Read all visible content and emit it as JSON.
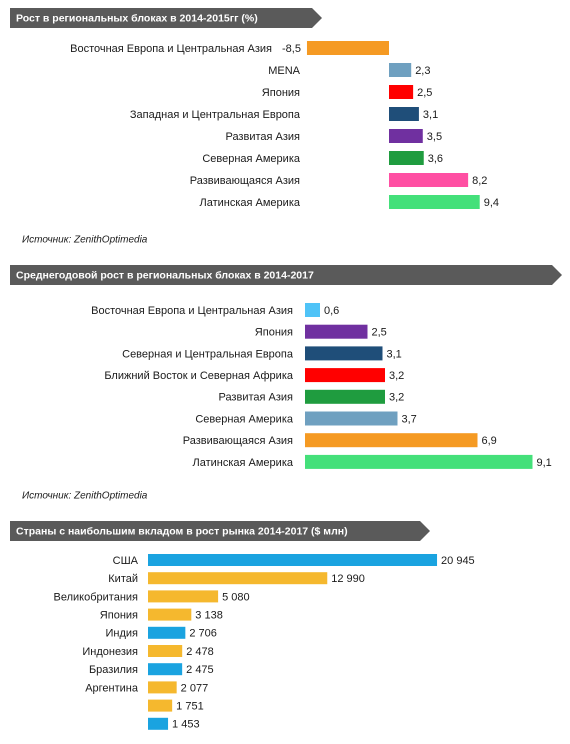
{
  "chart_data": [
    {
      "type": "bar",
      "orientation": "horizontal",
      "title": "Рост в региональных блоках в 2014-2015гг (%)",
      "categories": [
        "Восточная Европа и Центральная Азия",
        "MENA",
        "Япония",
        "Западная и Центральная Европа",
        "Развитая Азия",
        "Северная Америка",
        "Развивающаяся Азия",
        "Латинская Америка"
      ],
      "values": [
        -8.5,
        2.3,
        2.5,
        3.1,
        3.5,
        3.6,
        8.2,
        9.4
      ],
      "value_labels": [
        "-8,5",
        "2,3",
        "2,5",
        "3,1",
        "3,5",
        "3,6",
        "8,2",
        "9,4"
      ],
      "colors": [
        "#f59a23",
        "#6fa0c0",
        "#ff0000",
        "#1f4e79",
        "#7030a0",
        "#1f9c3f",
        "#ff4fa3",
        "#44e07a"
      ],
      "source": "Источник: ZenithOptimedia"
    },
    {
      "type": "bar",
      "orientation": "horizontal",
      "title": "Среднегодовой рост в региональных блоках в 2014-2017",
      "categories": [
        "Восточная Европа и Центральная Азия",
        "Япония",
        "Северная и Центральная Европа",
        "Ближний Восток и Северная Африка",
        "Развитая Азия",
        "Северная Америка",
        "Развивающаяся Азия",
        "Латинская Америка"
      ],
      "values": [
        0.6,
        2.5,
        3.1,
        3.2,
        3.2,
        3.7,
        6.9,
        9.1
      ],
      "value_labels": [
        "0,6",
        "2,5",
        "3,1",
        "3,2",
        "3,2",
        "3,7",
        "6,9",
        "9,1"
      ],
      "colors": [
        "#4fc3f7",
        "#7030a0",
        "#1f4e79",
        "#ff0000",
        "#1f9c3f",
        "#6fa0c0",
        "#f59a23",
        "#44e07a"
      ],
      "source": "Источник: ZenithOptimedia"
    },
    {
      "type": "bar",
      "orientation": "horizontal",
      "title": "Страны с наибольшим вкладом в рост рынка 2014-2017 ($ млн)",
      "categories": [
        "США",
        "Китай",
        "Великобритания",
        "Япония",
        "Индия",
        "Индонезия",
        "Бразилия",
        "Аргентина",
        null,
        null
      ],
      "values": [
        20945,
        12990,
        5080,
        3138,
        2706,
        2478,
        2475,
        2077,
        1751,
        1453
      ],
      "value_labels": [
        "20 945",
        "12 990",
        "5 080",
        "3 138",
        "2 706",
        "2 478",
        "2 475",
        "2 077",
        "1 751",
        "1 453"
      ],
      "colors": [
        "#1aa3e0",
        "#f5b82e",
        "#f5b82e",
        "#f5b82e",
        "#1aa3e0",
        "#f5b82e",
        "#1aa3e0",
        "#f5b82e",
        "#f5b82e",
        "#1aa3e0"
      ]
    }
  ]
}
